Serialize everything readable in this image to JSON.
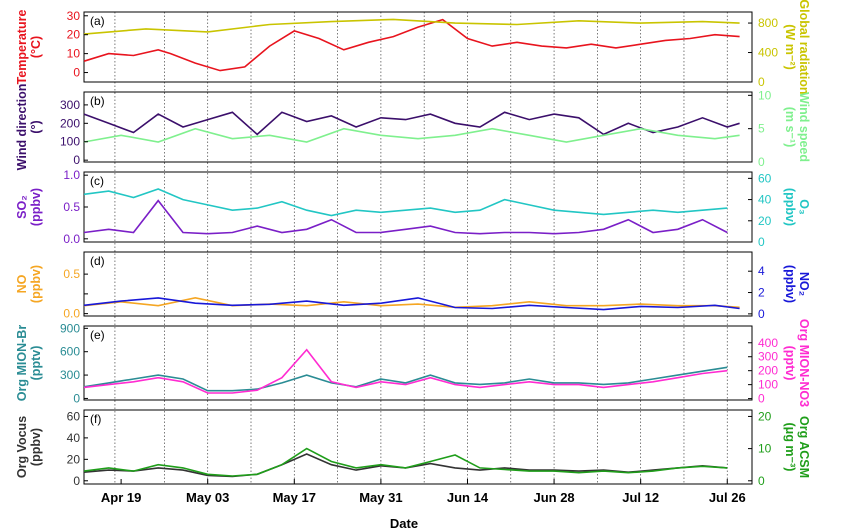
{
  "figure": {
    "xlabel": "Date",
    "x_ticks": [
      "Apr 19",
      "May 03",
      "May 17",
      "May 31",
      "Jun 14",
      "Jun 28",
      "Jul 12",
      "Jul 26"
    ],
    "x_range_days": [
      0,
      100
    ],
    "x_tick_days": [
      6,
      20,
      34,
      48,
      62,
      76,
      90,
      104
    ]
  },
  "chart_data": [
    {
      "type": "line",
      "panel": "(a)",
      "y_left": {
        "label_line1": "Temperature",
        "label_line2": "(°C)",
        "range": [
          -5,
          32
        ],
        "ticks": [
          0,
          10,
          20,
          30
        ],
        "color": "#e8141e"
      },
      "y_right": {
        "label_line1": "Global radiation",
        "label_line2": "(W m⁻²)",
        "range": [
          0,
          950
        ],
        "ticks": [
          0,
          400,
          800
        ],
        "color": "#c9c400"
      },
      "series": [
        {
          "name": "Temperature",
          "axis": "left",
          "color": "#e8141e",
          "x": [
            0,
            4,
            8,
            12,
            14,
            18,
            22,
            26,
            30,
            34,
            38,
            42,
            46,
            50,
            54,
            58,
            62,
            66,
            70,
            74,
            78,
            82,
            86,
            90,
            94,
            98,
            102,
            106
          ],
          "y": [
            6,
            10,
            9,
            12,
            10,
            5,
            1,
            3,
            14,
            22,
            18,
            12,
            16,
            19,
            24,
            28,
            18,
            14,
            16,
            14,
            13,
            15,
            13,
            15,
            17,
            18,
            20,
            19
          ]
        },
        {
          "name": "Global radiation",
          "axis": "right",
          "color": "#c9c400",
          "x": [
            0,
            10,
            20,
            30,
            40,
            50,
            60,
            70,
            80,
            90,
            100,
            106
          ],
          "y": [
            650,
            720,
            680,
            780,
            820,
            850,
            800,
            780,
            830,
            800,
            820,
            800
          ]
        }
      ]
    },
    {
      "type": "line",
      "panel": "(b)",
      "y_left": {
        "label_line1": "Wind direction",
        "label_line2": "(°)",
        "range": [
          -10,
          370
        ],
        "ticks": [
          0,
          100,
          200,
          300
        ],
        "color": "#3b0f6b"
      },
      "y_right": {
        "label_line1": "Wind speed",
        "label_line2": "(m s⁻¹)",
        "range": [
          0,
          10.5
        ],
        "ticks": [
          0,
          5,
          10
        ],
        "color": "#7ff08e"
      },
      "series": [
        {
          "name": "Wind direction",
          "axis": "left",
          "color": "#3b0f6b",
          "x": [
            0,
            4,
            8,
            12,
            16,
            20,
            24,
            28,
            32,
            36,
            40,
            44,
            48,
            52,
            56,
            60,
            64,
            68,
            72,
            76,
            80,
            84,
            88,
            92,
            96,
            100,
            104,
            106
          ],
          "y": [
            250,
            200,
            150,
            250,
            180,
            220,
            260,
            140,
            260,
            210,
            240,
            180,
            230,
            220,
            250,
            200,
            180,
            260,
            220,
            250,
            230,
            140,
            200,
            150,
            180,
            230,
            180,
            200
          ]
        },
        {
          "name": "Wind speed",
          "axis": "right",
          "color": "#7ff08e",
          "x": [
            0,
            6,
            12,
            18,
            24,
            30,
            36,
            42,
            48,
            54,
            60,
            66,
            72,
            78,
            84,
            90,
            96,
            102,
            106
          ],
          "y": [
            3,
            4,
            3,
            5,
            3.5,
            4,
            3,
            5,
            4,
            3.5,
            4,
            5,
            4,
            3,
            4,
            5,
            4,
            3.5,
            4
          ]
        }
      ]
    },
    {
      "type": "line",
      "panel": "(c)",
      "y_left": {
        "label_line1": "SO₂",
        "label_line2": "(ppbv)",
        "range": [
          -0.05,
          1.05
        ],
        "ticks": [
          0.0,
          0.5,
          1.0
        ],
        "tick_labels": [
          "0.0",
          "0.5",
          "1.0"
        ],
        "color": "#7a1fc7"
      },
      "y_right": {
        "label_line1": "O₃",
        "label_line2": "(ppbv)",
        "range": [
          0,
          66
        ],
        "ticks": [
          0,
          20,
          40,
          60
        ],
        "color": "#22c6c4"
      },
      "series": [
        {
          "name": "SO₂",
          "axis": "left",
          "color": "#7a1fc7",
          "x": [
            0,
            4,
            8,
            12,
            16,
            20,
            24,
            28,
            32,
            36,
            40,
            44,
            48,
            52,
            56,
            60,
            64,
            68,
            72,
            76,
            80,
            84,
            88,
            92,
            96,
            100,
            104
          ],
          "y": [
            0.1,
            0.15,
            0.1,
            0.6,
            0.1,
            0.08,
            0.1,
            0.2,
            0.1,
            0.15,
            0.3,
            0.1,
            0.1,
            0.15,
            0.2,
            0.1,
            0.08,
            0.1,
            0.1,
            0.08,
            0.1,
            0.15,
            0.3,
            0.1,
            0.15,
            0.3,
            0.1
          ]
        },
        {
          "name": "O₃",
          "axis": "right",
          "color": "#22c6c4",
          "x": [
            0,
            4,
            8,
            12,
            16,
            20,
            24,
            28,
            32,
            36,
            40,
            44,
            48,
            52,
            56,
            60,
            64,
            68,
            72,
            76,
            80,
            84,
            88,
            92,
            96,
            100,
            104
          ],
          "y": [
            45,
            48,
            42,
            50,
            40,
            35,
            30,
            32,
            38,
            30,
            25,
            30,
            28,
            30,
            32,
            28,
            30,
            40,
            35,
            30,
            28,
            26,
            28,
            30,
            28,
            30,
            32
          ]
        }
      ]
    },
    {
      "type": "line",
      "panel": "(d)",
      "y_left": {
        "label_line1": "NO",
        "label_line2": "(ppbv)",
        "range": [
          -0.03,
          0.78
        ],
        "ticks": [
          0.0,
          0.25,
          0.5
        ],
        "tick_labels": [
          "0.0",
          "",
          "0.5"
        ],
        "color": "#f5a623"
      },
      "y_right": {
        "label_line1": "NO₂",
        "label_line2": "(ppbv)",
        "range": [
          -0.2,
          5.8
        ],
        "ticks": [
          0,
          2,
          4
        ],
        "color": "#1818d8"
      },
      "series": [
        {
          "name": "NO",
          "axis": "left",
          "color": "#f5a623",
          "x": [
            0,
            6,
            12,
            18,
            24,
            30,
            36,
            42,
            48,
            54,
            60,
            66,
            72,
            78,
            84,
            90,
            96,
            102,
            106
          ],
          "y": [
            0.1,
            0.15,
            0.1,
            0.2,
            0.1,
            0.12,
            0.1,
            0.15,
            0.1,
            0.12,
            0.08,
            0.1,
            0.15,
            0.1,
            0.1,
            0.12,
            0.1,
            0.1,
            0.08
          ]
        },
        {
          "name": "NO₂",
          "axis": "right",
          "color": "#1818d8",
          "x": [
            0,
            6,
            12,
            18,
            24,
            30,
            36,
            42,
            48,
            54,
            60,
            66,
            72,
            78,
            84,
            90,
            96,
            102,
            106
          ],
          "y": [
            0.8,
            1.2,
            1.5,
            1.0,
            0.8,
            0.9,
            1.2,
            0.8,
            1.0,
            1.5,
            0.6,
            0.5,
            0.8,
            0.6,
            0.4,
            0.7,
            0.6,
            0.8,
            0.5
          ]
        }
      ]
    },
    {
      "type": "line",
      "panel": "(e)",
      "y_left": {
        "label_line1": "Org MION-Br",
        "label_line2": "(pptv)",
        "range": [
          -20,
          930
        ],
        "ticks": [
          0,
          300,
          600,
          900
        ],
        "color": "#2a8c94"
      },
      "y_right": {
        "label_line1": "Org MION-NO3",
        "label_line2": "(pptv)",
        "range": [
          -10,
          520
        ],
        "ticks": [
          0,
          100,
          200,
          300,
          400
        ],
        "color": "#ff2bd1"
      },
      "series": [
        {
          "name": "Org MION-Br",
          "axis": "left",
          "color": "#2a8c94",
          "x": [
            0,
            4,
            8,
            12,
            16,
            20,
            24,
            28,
            32,
            36,
            40,
            44,
            48,
            52,
            56,
            60,
            64,
            68,
            72,
            76,
            80,
            84,
            88,
            92,
            96,
            100,
            104
          ],
          "y": [
            150,
            200,
            250,
            300,
            250,
            100,
            100,
            120,
            200,
            300,
            200,
            150,
            250,
            200,
            300,
            200,
            180,
            200,
            250,
            200,
            200,
            180,
            200,
            250,
            300,
            350,
            400
          ]
        },
        {
          "name": "Org MION-NO3",
          "axis": "right",
          "color": "#ff2bd1",
          "x": [
            0,
            4,
            8,
            12,
            16,
            20,
            24,
            28,
            32,
            36,
            40,
            44,
            48,
            52,
            56,
            60,
            64,
            68,
            72,
            76,
            80,
            84,
            88,
            92,
            96,
            100,
            104
          ],
          "y": [
            80,
            100,
            120,
            150,
            120,
            40,
            40,
            60,
            150,
            350,
            120,
            80,
            120,
            100,
            150,
            100,
            80,
            100,
            120,
            100,
            100,
            80,
            100,
            120,
            150,
            180,
            200
          ]
        }
      ]
    },
    {
      "type": "line",
      "panel": "(f)",
      "y_left": {
        "label_line1": "Org Vocus",
        "label_line2": "(ppbv)",
        "range": [
          -3,
          66
        ],
        "ticks": [
          0,
          20,
          40,
          60
        ],
        "color": "#333333"
      },
      "y_right": {
        "label_line1": "Org ACSM",
        "label_line2": "(μg m⁻³)",
        "range": [
          -1,
          22
        ],
        "ticks": [
          0,
          10,
          20
        ],
        "color": "#1f9e1a"
      },
      "series": [
        {
          "name": "Org Vocus",
          "axis": "left",
          "color": "#333333",
          "x": [
            0,
            4,
            8,
            12,
            16,
            20,
            24,
            28,
            32,
            36,
            40,
            44,
            48,
            52,
            56,
            60,
            64,
            68,
            72,
            76,
            80,
            84,
            88,
            92,
            96,
            100,
            104
          ],
          "y": [
            8,
            10,
            9,
            12,
            10,
            5,
            4,
            6,
            15,
            25,
            15,
            10,
            14,
            12,
            16,
            12,
            10,
            12,
            10,
            10,
            9,
            10,
            8,
            10,
            12,
            14,
            12
          ]
        },
        {
          "name": "Org ACSM",
          "axis": "right",
          "color": "#1f9e1a",
          "x": [
            0,
            4,
            8,
            12,
            16,
            20,
            24,
            28,
            32,
            36,
            40,
            44,
            48,
            52,
            56,
            60,
            64,
            68,
            72,
            76,
            80,
            84,
            88,
            92,
            96,
            100,
            104
          ],
          "y": [
            3,
            4,
            3,
            5,
            4,
            2,
            1.5,
            2,
            5,
            10,
            6,
            4,
            5,
            4,
            6,
            8,
            4,
            3.5,
            3,
            3,
            2.5,
            3,
            2.5,
            3,
            4,
            4.5,
            4
          ]
        }
      ]
    }
  ]
}
